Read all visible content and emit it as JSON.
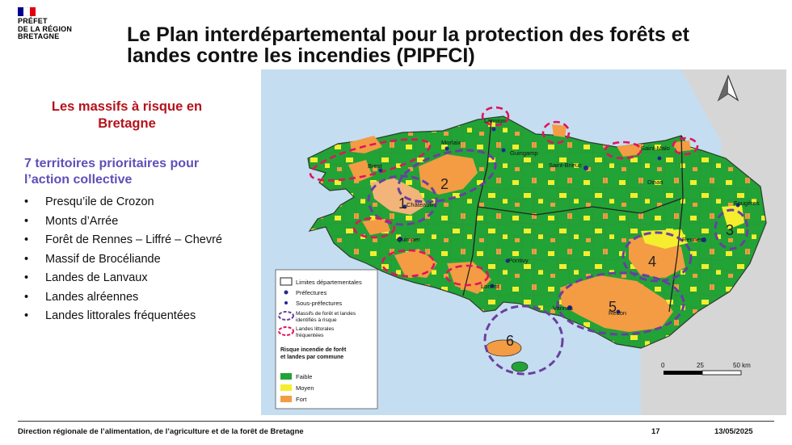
{
  "header": {
    "logo_lines": [
      "PRÉFET",
      "DE LA RÉGION",
      "BRETAGNE"
    ],
    "title_line1": "Le Plan interdépartemental pour la protection des forêts et",
    "title_line2": "landes contre les incendies (PIPFCI)"
  },
  "sidebar": {
    "heading_line1": "Les massifs à risque en",
    "heading_line2": "Bretagne",
    "territories_line1": "7 territoires prioritaires pour",
    "territories_line2": "l’action collective",
    "items": [
      "Presqu’ile de Crozon",
      "Monts d’Arrée",
      "Forêt de Rennes – Liffré – Chevré",
      "Massif de Brocéliande",
      "Landes de Lanvaux",
      "Landes alréennes",
      "Landes littorales fréquentées"
    ]
  },
  "map": {
    "towns": {
      "lannion": "Lannion",
      "morlaix": "Morlaix",
      "guingamp": "Guingamp",
      "saint_brieuc": "Saint-Brieuc",
      "saint_malo": "Saint-Malo",
      "dinan": "Dinan",
      "brest": "Brest",
      "chateaulin": "Châteaulin",
      "fougeres": "Fougères",
      "rennes": "Rennes",
      "quimper": "Quimper",
      "pontivy": "Pontivy",
      "lorient": "Lorient",
      "vannes": "Vannes",
      "redon": "Redon"
    },
    "massif_numbers": [
      "1",
      "2",
      "3",
      "4",
      "5",
      "6"
    ],
    "legend": {
      "limits": "Limites départementales",
      "prefectures": "Préfectures",
      "sous_prefectures": "Sous-préfectures",
      "massifs_line1": "Massifs de forêt et landes",
      "massifs_line2": "identifiés à risque",
      "littorales_line1": "Landes littorales",
      "littorales_line2": "fréquentées",
      "risk_title_line1": "Risque incendie de forêt",
      "risk_title_line2": "et landes par commune",
      "faible": "Faible",
      "moyen": "Moyen",
      "fort": "Fort"
    },
    "scale": {
      "zero": "0",
      "mid": "25",
      "end": "50 km"
    },
    "north_symbol": "north-arrow",
    "colors": {
      "sea": "#c5ddf0",
      "land_outside": "#d6d6d6",
      "faible": "#21a336",
      "moyen": "#f4ee2e",
      "fort": "#f39c43",
      "massif_outline": "#6a3fa0",
      "littoral_outline": "#e0145e",
      "prefecture_dot": "#1f2a8c"
    }
  },
  "footer": {
    "organisation": "Direction régionale de l’alimentation, de l’agriculture et de la forêt de Bretagne",
    "page": "17",
    "date": "13/05/2025"
  }
}
